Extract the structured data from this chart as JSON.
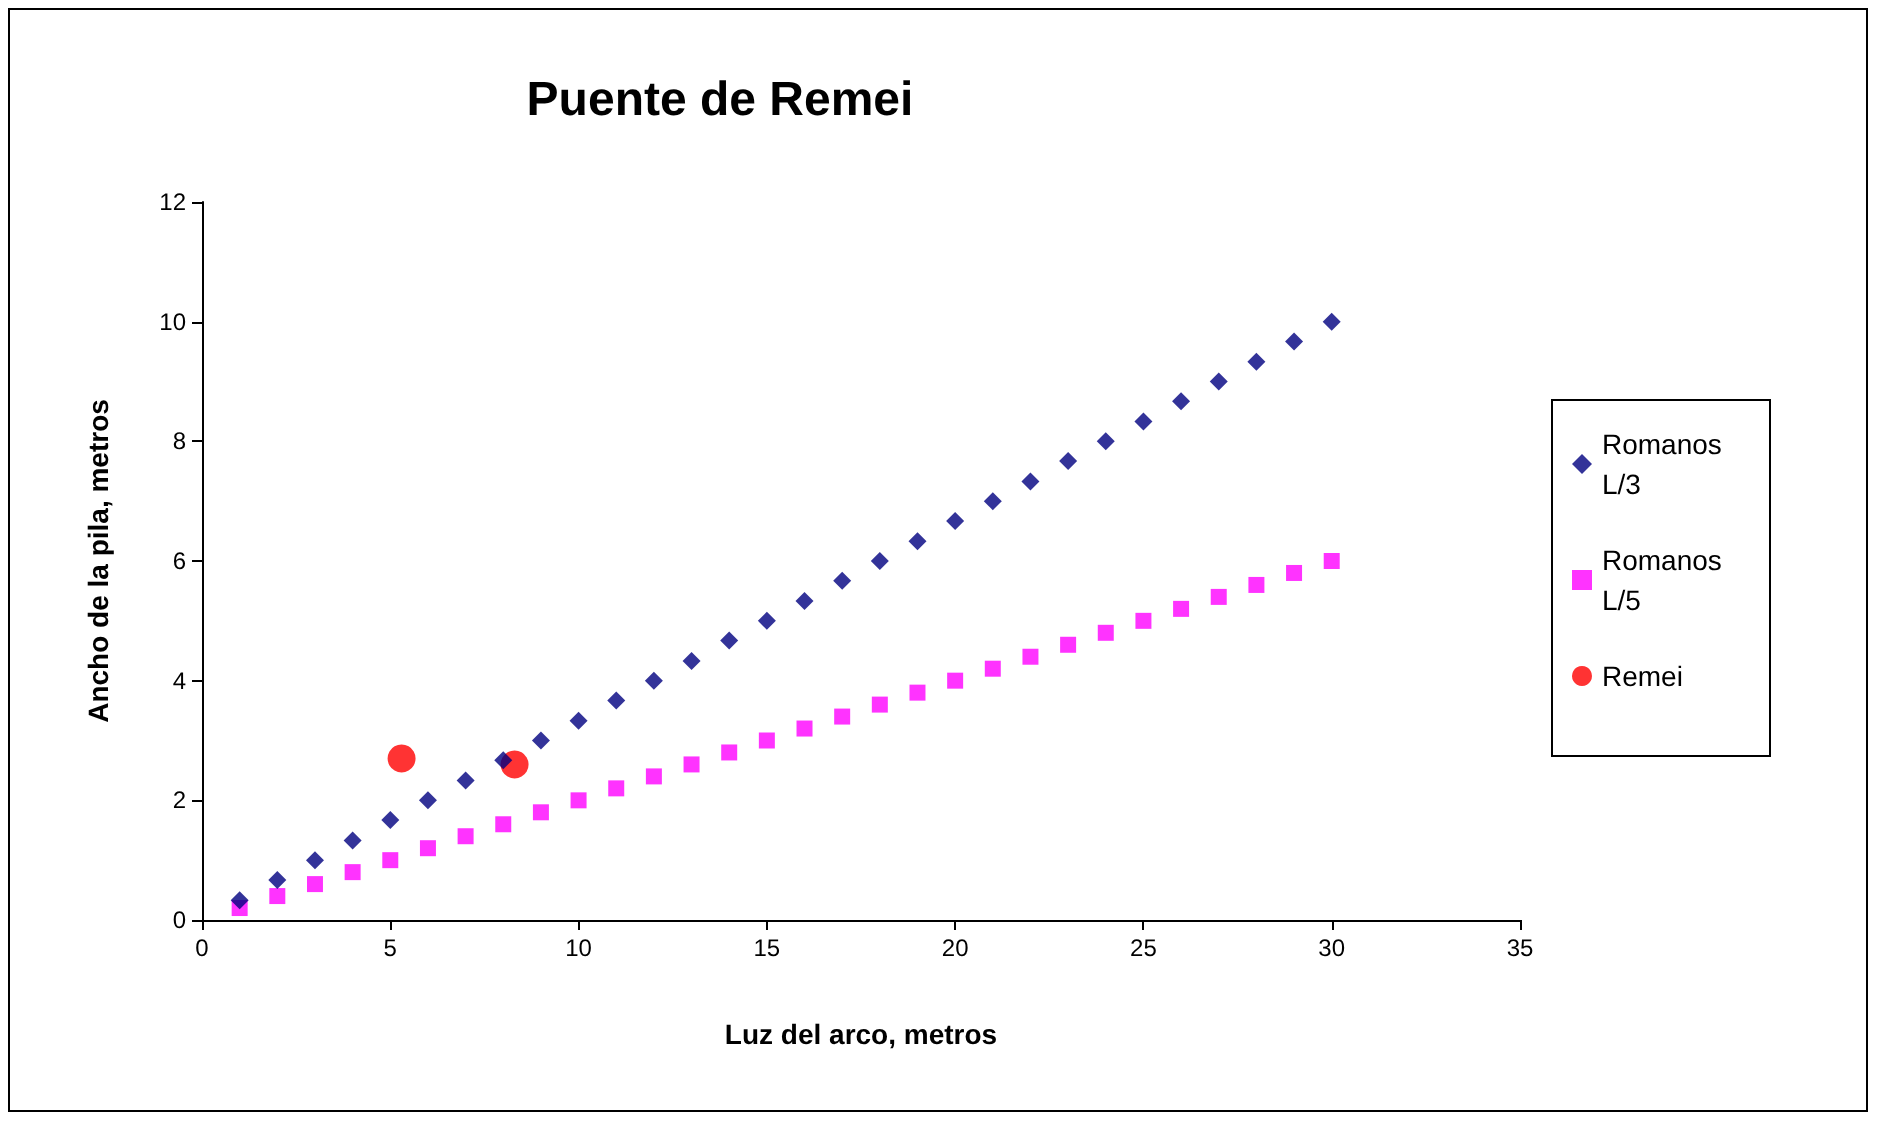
{
  "chart_data": {
    "type": "scatter",
    "title": "Puente de Remei",
    "xlabel": "Luz del arco, metros",
    "ylabel": "Ancho de la pila, metros",
    "x": [
      1,
      2,
      3,
      4,
      5,
      6,
      7,
      8,
      9,
      10,
      11,
      12,
      13,
      14,
      15,
      16,
      17,
      18,
      19,
      20,
      21,
      22,
      23,
      24,
      25,
      26,
      27,
      28,
      29,
      30
    ],
    "series": [
      {
        "name": "Romanos L/3",
        "color": "#000080",
        "marker": "diamond",
        "values": [
          0.33,
          0.67,
          1,
          1.33,
          1.67,
          2,
          2.33,
          2.67,
          3,
          3.33,
          3.67,
          4,
          4.33,
          4.67,
          5,
          5.33,
          5.67,
          6,
          6.33,
          6.67,
          7,
          7.33,
          7.67,
          8,
          8.33,
          8.67,
          9,
          9.33,
          9.67,
          10
        ]
      },
      {
        "name": "Romanos L/5",
        "color": "#ff00ff",
        "marker": "square",
        "values": [
          0.2,
          0.4,
          0.6,
          0.8,
          1,
          1.2,
          1.4,
          1.6,
          1.8,
          2,
          2.2,
          2.4,
          2.6,
          2.8,
          3,
          3.2,
          3.4,
          3.6,
          3.8,
          4,
          4.2,
          4.4,
          4.6,
          4.8,
          5,
          5.2,
          5.4,
          5.6,
          5.8,
          6
        ]
      },
      {
        "name": "Remei",
        "color": "#ff0000",
        "marker": "circle",
        "x": [
          5.3,
          8.3
        ],
        "values": [
          2.7,
          2.6
        ]
      }
    ],
    "xlim": [
      0,
      35
    ],
    "xticks": [
      0,
      5,
      10,
      15,
      20,
      25,
      30,
      35
    ],
    "ylim": [
      0,
      12
    ],
    "yticks": [
      0,
      2,
      4,
      6,
      8,
      10,
      12
    ],
    "grid": false,
    "legend": "right"
  }
}
